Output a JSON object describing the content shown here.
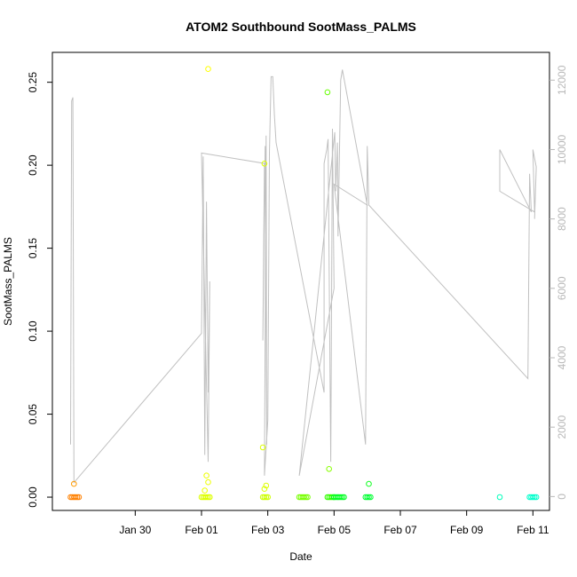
{
  "chart_data": {
    "type": "scatter",
    "title": "ATOM2 Southbound SootMass_PALMS",
    "xlabel": "Date",
    "ylabel": "SootMass_PALMS",
    "x_range_days": [
      -2.5,
      12.5
    ],
    "x_reference_date": "Jan 30",
    "ylim": [
      -0.008,
      0.268
    ],
    "y2lim": [
      -400,
      12800
    ],
    "x_ticks": [
      {
        "day": 0,
        "label": "Jan 30"
      },
      {
        "day": 2,
        "label": "Feb 01"
      },
      {
        "day": 4,
        "label": "Feb 03"
      },
      {
        "day": 6,
        "label": "Feb 05"
      },
      {
        "day": 8,
        "label": "Feb 07"
      },
      {
        "day": 10,
        "label": "Feb 09"
      },
      {
        "day": 12,
        "label": "Feb 11"
      }
    ],
    "y_ticks": [
      {
        "value": 0.0,
        "label": "0.00"
      },
      {
        "value": 0.05,
        "label": "0.05"
      },
      {
        "value": 0.1,
        "label": "0.10"
      },
      {
        "value": 0.15,
        "label": "0.15"
      },
      {
        "value": 0.2,
        "label": "0.20"
      },
      {
        "value": 0.25,
        "label": "0.25"
      }
    ],
    "y2_ticks": [
      {
        "value": 0,
        "label": "0"
      },
      {
        "value": 2000,
        "label": "2000"
      },
      {
        "value": 4000,
        "label": "4000"
      },
      {
        "value": 6000,
        "label": "6000"
      },
      {
        "value": 8000,
        "label": "8000"
      },
      {
        "value": 10000,
        "label": "10000"
      },
      {
        "value": 12000,
        "label": "12000"
      }
    ],
    "altitude_color": "#c0c0c0",
    "altitude_line": [
      [
        -1.95,
        1500
      ],
      [
        -1.92,
        11400
      ],
      [
        -1.88,
        11500
      ],
      [
        -1.85,
        400
      ],
      [
        2.0,
        4700
      ],
      [
        2.05,
        9800
      ],
      [
        2.1,
        1200
      ],
      [
        2.15,
        8500
      ],
      [
        2.2,
        3000
      ],
      [
        2.25,
        6200
      ],
      [
        2.2,
        1000
      ],
      [
        2.0,
        9900
      ],
      [
        3.9,
        9600
      ],
      [
        3.85,
        4500
      ],
      [
        3.92,
        10100
      ],
      [
        3.97,
        1500
      ],
      [
        3.95,
        10400
      ],
      [
        3.9,
        600
      ],
      [
        4.0,
        2200
      ],
      [
        4.05,
        9900
      ],
      [
        4.1,
        12100
      ],
      [
        4.15,
        12100
      ],
      [
        4.2,
        11000
      ],
      [
        4.25,
        10200
      ],
      [
        5.7,
        3000
      ],
      [
        5.7,
        9600
      ],
      [
        5.78,
        10000
      ],
      [
        5.82,
        10300
      ],
      [
        5.9,
        1000
      ],
      [
        5.95,
        10600
      ],
      [
        6.0,
        6000
      ],
      [
        4.95,
        600
      ],
      [
        6.02,
        10500
      ],
      [
        6.05,
        8800
      ],
      [
        6.1,
        10200
      ],
      [
        6.12,
        7500
      ],
      [
        6.2,
        12000
      ],
      [
        6.25,
        12300
      ],
      [
        7.0,
        8400
      ],
      [
        6.0,
        9000
      ],
      [
        6.95,
        1500
      ],
      [
        7.0,
        10100
      ],
      [
        7.05,
        8400
      ],
      [
        11.85,
        3400
      ],
      [
        11.9,
        9300
      ],
      [
        11.95,
        8200
      ],
      [
        11.0,
        10000
      ],
      [
        11.0,
        8800
      ],
      [
        12.05,
        8200
      ],
      [
        12.0,
        10000
      ],
      [
        12.1,
        9500
      ],
      [
        12.05,
        8000
      ]
    ],
    "points": [
      {
        "x": -1.95,
        "y": 0.0,
        "color": "#ff8000"
      },
      {
        "x": -1.9,
        "y": 0.0,
        "color": "#ff8000"
      },
      {
        "x": -1.85,
        "y": 0.0,
        "color": "#ff8000"
      },
      {
        "x": -1.8,
        "y": 0.0,
        "color": "#ff8000"
      },
      {
        "x": -1.75,
        "y": 0.0,
        "color": "#ff8000"
      },
      {
        "x": -1.7,
        "y": 0.0,
        "color": "#ff8000"
      },
      {
        "x": -1.85,
        "y": 0.008,
        "color": "#ff9a00"
      },
      {
        "x": 2.0,
        "y": 0.0,
        "color": "#ddff00"
      },
      {
        "x": 2.05,
        "y": 0.0,
        "color": "#ddff00"
      },
      {
        "x": 2.1,
        "y": 0.0,
        "color": "#ddff00"
      },
      {
        "x": 2.15,
        "y": 0.0,
        "color": "#ddff00"
      },
      {
        "x": 2.2,
        "y": 0.0,
        "color": "#ddff00"
      },
      {
        "x": 2.25,
        "y": 0.0,
        "color": "#ddff00"
      },
      {
        "x": 2.2,
        "y": 0.258,
        "color": "#ffff00"
      },
      {
        "x": 2.15,
        "y": 0.013,
        "color": "#eeff00"
      },
      {
        "x": 2.2,
        "y": 0.009,
        "color": "#eeff00"
      },
      {
        "x": 2.1,
        "y": 0.004,
        "color": "#eeff00"
      },
      {
        "x": 3.85,
        "y": 0.0,
        "color": "#ccff00"
      },
      {
        "x": 3.9,
        "y": 0.0,
        "color": "#ccff00"
      },
      {
        "x": 3.95,
        "y": 0.0,
        "color": "#ccff00"
      },
      {
        "x": 4.0,
        "y": 0.0,
        "color": "#ccff00"
      },
      {
        "x": 3.9,
        "y": 0.201,
        "color": "#ddff00"
      },
      {
        "x": 3.85,
        "y": 0.03,
        "color": "#ddff00"
      },
      {
        "x": 3.95,
        "y": 0.007,
        "color": "#ddff00"
      },
      {
        "x": 3.9,
        "y": 0.005,
        "color": "#ddff00"
      },
      {
        "x": 4.95,
        "y": 0.0,
        "color": "#77ff00"
      },
      {
        "x": 5.0,
        "y": 0.0,
        "color": "#77ff00"
      },
      {
        "x": 5.05,
        "y": 0.0,
        "color": "#77ff00"
      },
      {
        "x": 5.1,
        "y": 0.0,
        "color": "#77ff00"
      },
      {
        "x": 5.15,
        "y": 0.0,
        "color": "#77ff00"
      },
      {
        "x": 5.2,
        "y": 0.0,
        "color": "#77ff00"
      },
      {
        "x": 5.8,
        "y": 0.244,
        "color": "#66ff00"
      },
      {
        "x": 5.85,
        "y": 0.017,
        "color": "#88ff00"
      },
      {
        "x": 5.8,
        "y": 0.0,
        "color": "#33ff00"
      },
      {
        "x": 5.85,
        "y": 0.0,
        "color": "#33ff00"
      },
      {
        "x": 5.9,
        "y": 0.0,
        "color": "#33ff00"
      },
      {
        "x": 5.95,
        "y": 0.0,
        "color": "#33ff00"
      },
      {
        "x": 6.0,
        "y": 0.0,
        "color": "#33ff00"
      },
      {
        "x": 6.0,
        "y": 0.0,
        "color": "#00ff22"
      },
      {
        "x": 6.05,
        "y": 0.0,
        "color": "#00ff22"
      },
      {
        "x": 6.1,
        "y": 0.0,
        "color": "#00ff22"
      },
      {
        "x": 6.15,
        "y": 0.0,
        "color": "#00ff22"
      },
      {
        "x": 6.2,
        "y": 0.0,
        "color": "#00ff22"
      },
      {
        "x": 6.25,
        "y": 0.0,
        "color": "#00ff22"
      },
      {
        "x": 6.3,
        "y": 0.0,
        "color": "#00ff22"
      },
      {
        "x": 6.95,
        "y": 0.0,
        "color": "#00ff33"
      },
      {
        "x": 7.0,
        "y": 0.0,
        "color": "#00ff33"
      },
      {
        "x": 7.05,
        "y": 0.0,
        "color": "#00ff33"
      },
      {
        "x": 7.1,
        "y": 0.0,
        "color": "#00ff33"
      },
      {
        "x": 7.05,
        "y": 0.008,
        "color": "#11ff22"
      },
      {
        "x": 11.0,
        "y": 0.0,
        "color": "#00ffbb"
      },
      {
        "x": 11.9,
        "y": 0.0,
        "color": "#00ffcc"
      },
      {
        "x": 11.95,
        "y": 0.0,
        "color": "#00ffcc"
      },
      {
        "x": 12.0,
        "y": 0.0,
        "color": "#00ffcc"
      },
      {
        "x": 12.05,
        "y": 0.0,
        "color": "#00ffcc"
      },
      {
        "x": 12.1,
        "y": 0.0,
        "color": "#00ffcc"
      }
    ]
  }
}
